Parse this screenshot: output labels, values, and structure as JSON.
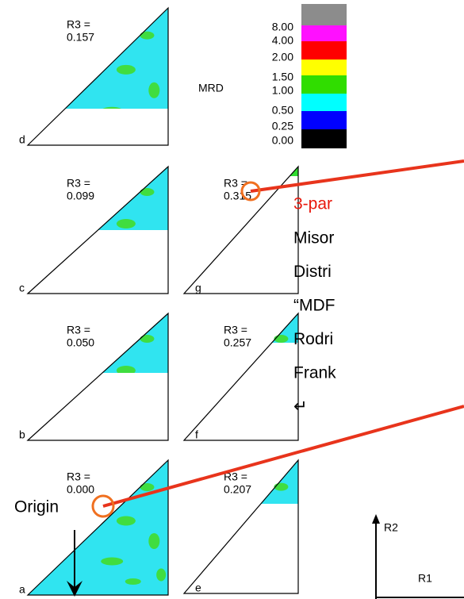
{
  "legend": {
    "title": "MRD",
    "labels": [
      "8.00",
      "4.00",
      "2.00",
      "1.50",
      "1.00",
      "0.50",
      "0.25",
      "0.00"
    ]
  },
  "panels": [
    {
      "letter": "d",
      "r3_label": "R3 =",
      "r3_value": "0.157"
    },
    {
      "letter": "c",
      "r3_label": "R3 =",
      "r3_value": "0.099"
    },
    {
      "letter": "b",
      "r3_label": "R3 =",
      "r3_value": "0.050"
    },
    {
      "letter": "a",
      "r3_label": "R3 =",
      "r3_value": "0.000"
    },
    {
      "letter": "g",
      "r3_label": "R3 =",
      "r3_value": "0.315"
    },
    {
      "letter": "f",
      "r3_label": "R3 =",
      "r3_value": "0.257"
    },
    {
      "letter": "e",
      "r3_label": "R3 =",
      "r3_value": "0.207"
    }
  ],
  "annotation": {
    "heading": "3-par",
    "lines": [
      "Misor",
      "Distri",
      "“MDF",
      "Rodri",
      "Frank",
      "↵"
    ]
  },
  "origin_label": "Origin",
  "axes": {
    "y": "R2",
    "x": "R1"
  }
}
